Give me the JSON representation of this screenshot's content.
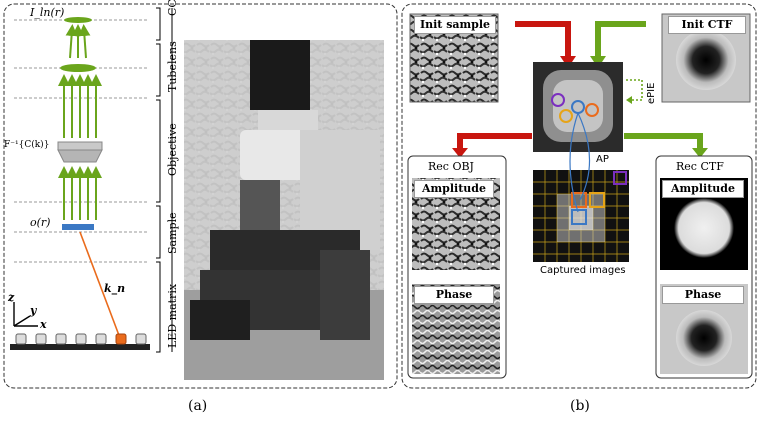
{
  "left": {
    "labels": {
      "intensity": "I_ln(r)",
      "pupil": "F⁻¹{C(k)}",
      "object": "o(r)",
      "wavevector": "k_n",
      "axis_z": "z",
      "axis_y": "y",
      "axis_x": "x"
    },
    "sections": [
      "CCD",
      "Tubelens",
      "Objective",
      "Sample",
      "LED matrix"
    ],
    "caption": "(a)"
  },
  "right": {
    "init_sample": "Init sample",
    "init_ctf": "Init CTF",
    "epie": "ePIE",
    "ap": "AP",
    "captured": "Captured images",
    "rec_obj": "Rec OBJ",
    "rec_ctf": "Rec CTF",
    "amplitude_obj": "Amplitude",
    "phase_obj": "Phase",
    "amplitude_ctf": "Amplitude",
    "phase_ctf": "Phase",
    "caption": "(b)"
  },
  "colors": {
    "green": "#6aa51c",
    "red": "#c8160f",
    "orange": "#ea6b1c",
    "blue": "#3b78c4",
    "purple": "#7b2fbf",
    "yellow": "#e6a418"
  }
}
